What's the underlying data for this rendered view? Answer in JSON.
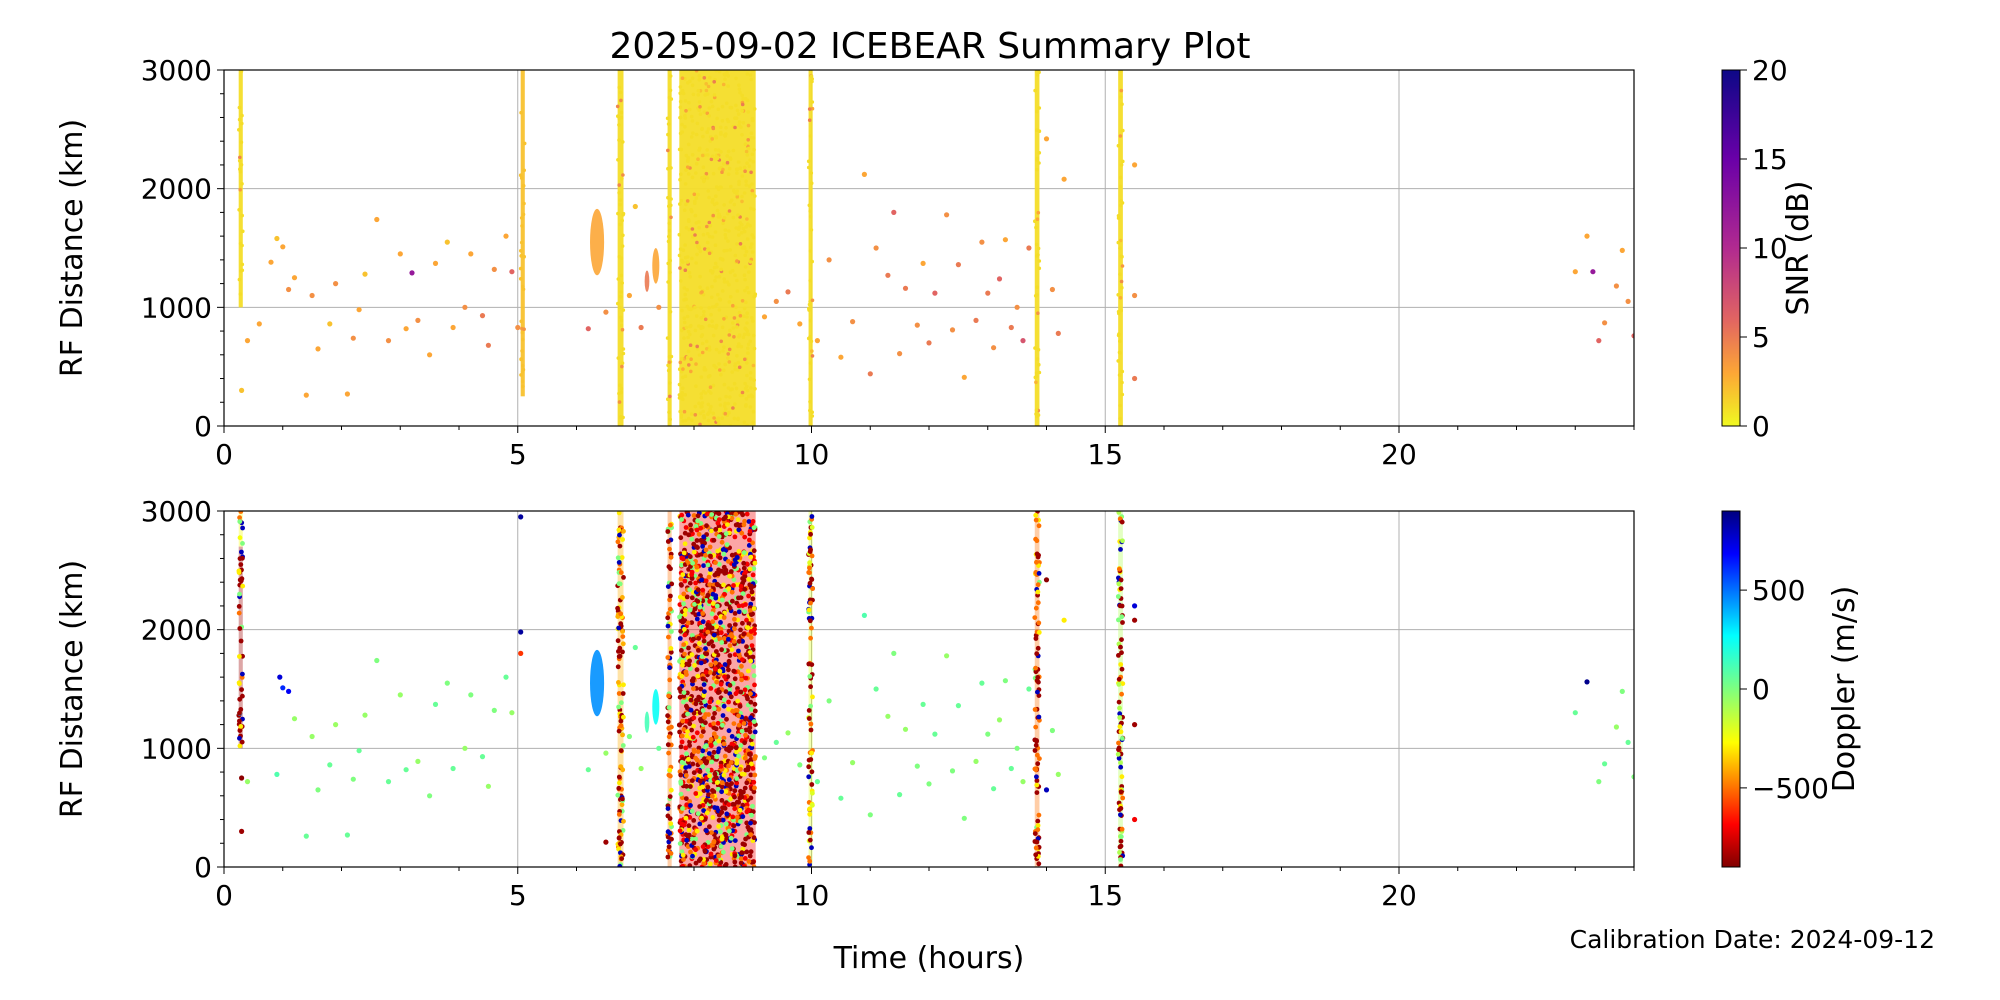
{
  "title": "2025-09-02 ICEBEAR Summary Plot",
  "calibration": "Calibration Date: 2024-09-12",
  "colors": {
    "grid": "#b0b0b0",
    "yellow": "#f5d327",
    "lightgreen": "#6cf56c"
  },
  "chart_data": [
    {
      "type": "scatter",
      "name": "snr-panel",
      "xlabel": "Time (hours)",
      "ylabel": "RF Distance (km)",
      "xlim": [
        0,
        24
      ],
      "ylim": [
        0,
        3000
      ],
      "xticks": [
        0,
        5,
        10,
        15,
        20
      ],
      "yticks": [
        0,
        1000,
        2000,
        3000
      ],
      "grid": true,
      "colorbar": {
        "label": "SNR (dB)",
        "colormap": "plasma_r",
        "range": [
          0,
          20
        ],
        "ticks": [
          0,
          5,
          10,
          15,
          20
        ]
      },
      "bands": [
        {
          "x0": 0.25,
          "x1": 0.32,
          "y0": 1000,
          "y1": 3000,
          "value": 1
        },
        {
          "x0": 5.05,
          "x1": 5.12,
          "y0": 250,
          "y1": 3000,
          "value": 2
        },
        {
          "x0": 6.7,
          "x1": 6.8,
          "y0": 0,
          "y1": 3000,
          "value": 1
        },
        {
          "x0": 7.55,
          "x1": 7.62,
          "y0": 0,
          "y1": 3000,
          "value": 1
        },
        {
          "x0": 7.75,
          "x1": 9.05,
          "y0": 0,
          "y1": 3000,
          "value": 1
        },
        {
          "x0": 9.95,
          "x1": 10.02,
          "y0": 0,
          "y1": 3000,
          "value": 1
        },
        {
          "x0": 13.8,
          "x1": 13.88,
          "y0": 0,
          "y1": 3000,
          "value": 1
        },
        {
          "x0": 15.22,
          "x1": 15.3,
          "y0": 0,
          "y1": 3000,
          "value": 1
        }
      ],
      "blobs": [
        {
          "x": 6.35,
          "y": 1550,
          "rx": 0.12,
          "ry": 280,
          "value": 3
        },
        {
          "x": 7.35,
          "y": 1350,
          "rx": 0.06,
          "ry": 150,
          "value": 3
        },
        {
          "x": 7.2,
          "y": 1220,
          "rx": 0.04,
          "ry": 90,
          "value": 5
        }
      ],
      "points": [
        [
          0.3,
          300,
          2
        ],
        [
          0.4,
          720,
          3
        ],
        [
          0.6,
          860,
          3
        ],
        [
          0.8,
          1380,
          3
        ],
        [
          0.9,
          1580,
          2
        ],
        [
          1.0,
          1510,
          3
        ],
        [
          1.1,
          1150,
          4
        ],
        [
          1.2,
          1250,
          3
        ],
        [
          1.4,
          260,
          3
        ],
        [
          1.5,
          1100,
          4
        ],
        [
          1.6,
          650,
          3
        ],
        [
          1.8,
          860,
          2
        ],
        [
          1.9,
          1200,
          4
        ],
        [
          2.1,
          270,
          3
        ],
        [
          2.2,
          740,
          4
        ],
        [
          2.3,
          980,
          3
        ],
        [
          2.4,
          1280,
          2
        ],
        [
          2.6,
          1740,
          3
        ],
        [
          2.8,
          720,
          4
        ],
        [
          3.0,
          1450,
          3
        ],
        [
          3.1,
          820,
          3
        ],
        [
          3.2,
          1290,
          12
        ],
        [
          3.3,
          890,
          4
        ],
        [
          3.5,
          600,
          3
        ],
        [
          3.6,
          1370,
          3
        ],
        [
          3.8,
          1550,
          2
        ],
        [
          3.9,
          830,
          3
        ],
        [
          4.1,
          1000,
          4
        ],
        [
          4.2,
          1450,
          3
        ],
        [
          4.4,
          930,
          5
        ],
        [
          4.5,
          680,
          5
        ],
        [
          4.6,
          1320,
          4
        ],
        [
          4.8,
          1600,
          3
        ],
        [
          4.9,
          1300,
          6
        ],
        [
          5.0,
          830,
          4
        ],
        [
          6.2,
          820,
          6
        ],
        [
          6.5,
          960,
          4
        ],
        [
          6.9,
          1100,
          3
        ],
        [
          7.0,
          1850,
          2
        ],
        [
          7.1,
          830,
          5
        ],
        [
          7.4,
          1000,
          4
        ],
        [
          9.2,
          920,
          3
        ],
        [
          9.4,
          1050,
          4
        ],
        [
          9.6,
          1130,
          5
        ],
        [
          9.8,
          860,
          3
        ],
        [
          10.1,
          720,
          3
        ],
        [
          10.3,
          1400,
          4
        ],
        [
          10.5,
          580,
          3
        ],
        [
          10.7,
          880,
          4
        ],
        [
          10.9,
          2120,
          3
        ],
        [
          11.0,
          440,
          5
        ],
        [
          11.1,
          1500,
          4
        ],
        [
          11.3,
          1270,
          5
        ],
        [
          11.4,
          1800,
          6
        ],
        [
          11.5,
          610,
          4
        ],
        [
          11.6,
          1160,
          5
        ],
        [
          11.8,
          850,
          4
        ],
        [
          11.9,
          1370,
          3
        ],
        [
          12.0,
          700,
          5
        ],
        [
          12.1,
          1120,
          6
        ],
        [
          12.3,
          1780,
          4
        ],
        [
          12.4,
          810,
          4
        ],
        [
          12.5,
          1360,
          5
        ],
        [
          12.6,
          410,
          3
        ],
        [
          12.8,
          890,
          5
        ],
        [
          12.9,
          1550,
          4
        ],
        [
          13.0,
          1120,
          5
        ],
        [
          13.1,
          660,
          4
        ],
        [
          13.2,
          1240,
          6
        ],
        [
          13.3,
          1570,
          3
        ],
        [
          13.4,
          830,
          5
        ],
        [
          13.5,
          1000,
          4
        ],
        [
          13.6,
          720,
          7
        ],
        [
          13.7,
          1500,
          5
        ],
        [
          14.0,
          2420,
          3
        ],
        [
          14.1,
          1150,
          4
        ],
        [
          14.2,
          780,
          5
        ],
        [
          14.3,
          2080,
          3
        ],
        [
          15.5,
          2200,
          3
        ],
        [
          15.5,
          1100,
          4
        ],
        [
          15.5,
          400,
          5
        ],
        [
          23.0,
          1300,
          3
        ],
        [
          23.2,
          1600,
          3
        ],
        [
          23.3,
          1300,
          12
        ],
        [
          23.4,
          720,
          6
        ],
        [
          23.5,
          870,
          4
        ],
        [
          23.7,
          1180,
          4
        ],
        [
          23.8,
          1480,
          3
        ],
        [
          23.9,
          1050,
          4
        ],
        [
          24.0,
          760,
          6
        ]
      ]
    },
    {
      "type": "scatter",
      "name": "doppler-panel",
      "xlabel": "Time (hours)",
      "ylabel": "RF Distance (km)",
      "xlim": [
        0,
        24
      ],
      "ylim": [
        0,
        3000
      ],
      "xticks": [
        0,
        5,
        10,
        15,
        20
      ],
      "yticks": [
        0,
        1000,
        2000,
        3000
      ],
      "grid": true,
      "colorbar": {
        "label": "Doppler (m/s)",
        "colormap": "jet_r",
        "range": [
          -900,
          900
        ],
        "ticks": [
          -500,
          0,
          500
        ]
      },
      "bands": [
        {
          "x0": 0.25,
          "x1": 0.32,
          "y0": 2700,
          "y1": 3000,
          "value": -250
        },
        {
          "x0": 0.25,
          "x1": 0.32,
          "y0": 1000,
          "y1": 2700,
          "value": -850
        },
        {
          "x0": 6.7,
          "x1": 6.8,
          "y0": 0,
          "y1": 3000,
          "value": -400
        },
        {
          "x0": 7.55,
          "x1": 7.62,
          "y0": 0,
          "y1": 3000,
          "value": -500
        },
        {
          "x0": 7.75,
          "x1": 9.05,
          "y0": 0,
          "y1": 3000,
          "value": -700
        },
        {
          "x0": 9.95,
          "x1": 10.02,
          "y0": 0,
          "y1": 3000,
          "value": -200
        },
        {
          "x0": 13.8,
          "x1": 13.88,
          "y0": 0,
          "y1": 3000,
          "value": -500
        },
        {
          "x0": 15.22,
          "x1": 15.3,
          "y0": 0,
          "y1": 3000,
          "value": -100
        }
      ],
      "blobs": [
        {
          "x": 6.35,
          "y": 1550,
          "rx": 0.12,
          "ry": 280,
          "value": 450
        },
        {
          "x": 7.35,
          "y": 1350,
          "rx": 0.06,
          "ry": 150,
          "value": 250
        },
        {
          "x": 7.2,
          "y": 1220,
          "rx": 0.04,
          "ry": 90,
          "value": 120
        }
      ],
      "points": [
        [
          0.3,
          300,
          -850
        ],
        [
          0.3,
          750,
          -880
        ],
        [
          0.4,
          720,
          -50
        ],
        [
          0.9,
          780,
          100
        ],
        [
          0.95,
          1600,
          750
        ],
        [
          1.0,
          1510,
          620
        ],
        [
          1.1,
          1480,
          700
        ],
        [
          1.2,
          1250,
          -50
        ],
        [
          1.4,
          260,
          50
        ],
        [
          1.5,
          1100,
          -50
        ],
        [
          1.6,
          650,
          0
        ],
        [
          1.8,
          860,
          50
        ],
        [
          1.9,
          1200,
          -60
        ],
        [
          2.1,
          270,
          50
        ],
        [
          2.2,
          740,
          0
        ],
        [
          2.3,
          980,
          50
        ],
        [
          2.4,
          1280,
          -50
        ],
        [
          2.6,
          1740,
          0
        ],
        [
          2.8,
          720,
          50
        ],
        [
          3.0,
          1450,
          -50
        ],
        [
          3.1,
          820,
          50
        ],
        [
          3.3,
          890,
          -50
        ],
        [
          3.5,
          600,
          0
        ],
        [
          3.6,
          1370,
          50
        ],
        [
          3.8,
          1550,
          0
        ],
        [
          3.9,
          830,
          50
        ],
        [
          4.1,
          1000,
          -50
        ],
        [
          4.2,
          1450,
          0
        ],
        [
          4.4,
          930,
          50
        ],
        [
          4.5,
          680,
          -50
        ],
        [
          4.6,
          1320,
          0
        ],
        [
          4.8,
          1600,
          50
        ],
        [
          4.9,
          1300,
          -50
        ],
        [
          5.05,
          2950,
          850
        ],
        [
          5.05,
          1980,
          850
        ],
        [
          5.05,
          1800,
          -600
        ],
        [
          6.2,
          820,
          50
        ],
        [
          6.5,
          960,
          -50
        ],
        [
          6.5,
          210,
          -850
        ],
        [
          6.9,
          1100,
          0
        ],
        [
          7.0,
          1850,
          50
        ],
        [
          7.1,
          830,
          -50
        ],
        [
          7.4,
          1000,
          50
        ],
        [
          9.2,
          920,
          0
        ],
        [
          9.4,
          1050,
          50
        ],
        [
          9.6,
          1130,
          -50
        ],
        [
          9.8,
          860,
          0
        ],
        [
          10.1,
          720,
          50
        ],
        [
          10.3,
          1400,
          0
        ],
        [
          10.5,
          580,
          50
        ],
        [
          10.7,
          880,
          -50
        ],
        [
          10.9,
          2120,
          100
        ],
        [
          11.0,
          440,
          0
        ],
        [
          11.1,
          1500,
          50
        ],
        [
          11.3,
          1270,
          -50
        ],
        [
          11.4,
          1800,
          0
        ],
        [
          11.5,
          610,
          50
        ],
        [
          11.6,
          1160,
          -50
        ],
        [
          11.8,
          850,
          0
        ],
        [
          11.9,
          1370,
          50
        ],
        [
          12.0,
          700,
          0
        ],
        [
          12.1,
          1120,
          50
        ],
        [
          12.3,
          1780,
          -50
        ],
        [
          12.4,
          810,
          0
        ],
        [
          12.5,
          1360,
          50
        ],
        [
          12.6,
          410,
          0
        ],
        [
          12.8,
          890,
          -50
        ],
        [
          12.9,
          1550,
          50
        ],
        [
          13.0,
          1120,
          0
        ],
        [
          13.1,
          660,
          50
        ],
        [
          13.2,
          1240,
          -50
        ],
        [
          13.3,
          1570,
          0
        ],
        [
          13.4,
          830,
          50
        ],
        [
          13.5,
          1000,
          0
        ],
        [
          13.6,
          720,
          -50
        ],
        [
          13.7,
          1500,
          50
        ],
        [
          14.0,
          2420,
          -880
        ],
        [
          14.0,
          650,
          800
        ],
        [
          14.1,
          1150,
          0
        ],
        [
          14.2,
          780,
          -50
        ],
        [
          14.3,
          2080,
          -300
        ],
        [
          15.5,
          2200,
          750
        ],
        [
          15.5,
          2080,
          -850
        ],
        [
          15.5,
          1200,
          -850
        ],
        [
          15.5,
          400,
          -700
        ],
        [
          23.0,
          1300,
          50
        ],
        [
          23.2,
          1560,
          880
        ],
        [
          23.4,
          720,
          0
        ],
        [
          23.5,
          870,
          50
        ],
        [
          23.7,
          1180,
          -50
        ],
        [
          23.8,
          1480,
          0
        ],
        [
          23.9,
          1050,
          50
        ],
        [
          24.0,
          760,
          0
        ]
      ]
    }
  ]
}
